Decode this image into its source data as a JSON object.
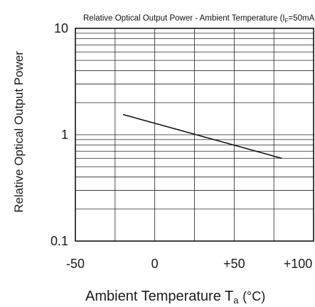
{
  "chart_data": {
    "type": "line",
    "title": "Relative Optical Output Power - Ambient Temperature",
    "title_condition_prefix": "(I",
    "title_condition_sub": "F",
    "title_condition_suffix": "=50mA)",
    "xlabel": "Ambient Temperature",
    "xlabel_symbol": "T",
    "xlabel_symbol_sub": "a",
    "xlabel_unit": "(°C)",
    "ylabel": "Relative Optical Output Power",
    "xlim": [
      -50,
      100
    ],
    "ylim": [
      0.1,
      10
    ],
    "yscale": "log",
    "grid": true,
    "x_ticks": [
      -50,
      0,
      50,
      100
    ],
    "x_tick_labels": [
      "-50",
      "0",
      "+50",
      "+100"
    ],
    "y_ticks": [
      0.1,
      1,
      10
    ],
    "y_tick_labels": [
      "0.1",
      "1",
      "10"
    ],
    "series": [
      {
        "x": [
          -20,
          80
        ],
        "y": [
          1.55,
          0.6
        ]
      }
    ]
  }
}
